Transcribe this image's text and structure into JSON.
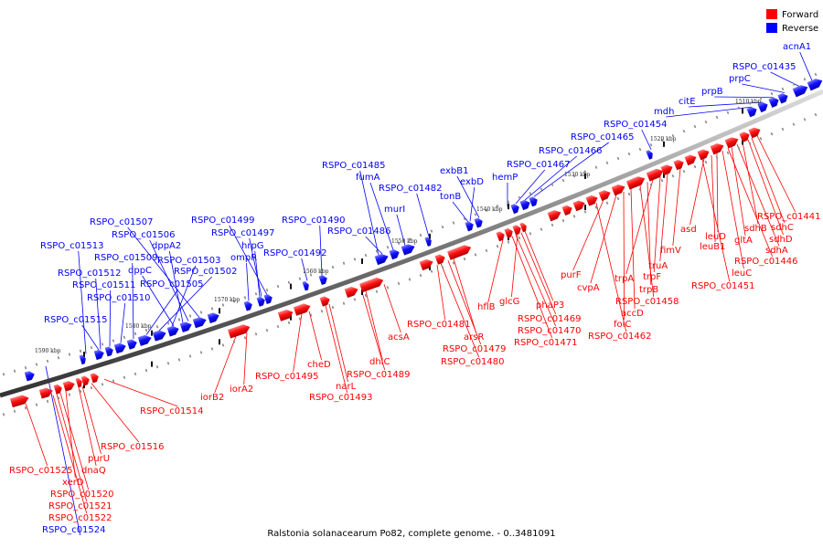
{
  "caption": "Ralstonia solanacearum Po82, complete genome. - 0..3481091",
  "legend": {
    "items": [
      {
        "label": "Forward",
        "color": "#ff0000"
      },
      {
        "label": "Reverse",
        "color": "#0000ff"
      }
    ]
  },
  "colors": {
    "forward": "#ff0000",
    "reverse": "#0000ff",
    "axis": "#808080",
    "line_forward": "#ff0000",
    "line_reverse": "#0000ff"
  },
  "ticks": [
    "1590 kbp",
    "1580 kbp",
    "1570 kbp",
    "1560 kbp",
    "1550 kbp",
    "1540 kbp",
    "1530 kbp",
    "1520 kbp",
    "1510 kbp"
  ],
  "forward_labels": [
    "RSPO_c01441",
    "sdhC",
    "sdhD",
    "sdhB",
    "sdhA",
    "gltA",
    "RSPO_c01446",
    "leuC",
    "leuD",
    "leuB1",
    "asd",
    "RSPO_c01451",
    "fimV",
    "truA",
    "trpF",
    "trpA",
    "trpB",
    "RSPO_c01458",
    "accD",
    "cvpA",
    "folC",
    "purF",
    "RSPO_c01462",
    "phaP3",
    "RSPO_c01469",
    "glcG",
    "RSPO_c01470",
    "RSPO_c01471",
    "hflB",
    "arsR",
    "RSPO_c01479",
    "RSPO_c01480",
    "RSPO_c01481",
    "acsA",
    "dhlC",
    "RSPO_c01489",
    "narL",
    "RSPO_c01493",
    "cheD",
    "RSPO_c01495",
    "iorA2",
    "iorB2",
    "RSPO_c01514",
    "RSPO_c01516",
    "purU",
    "dnaQ",
    "xerD",
    "RSPO_c01520",
    "RSPO_c01521",
    "RSPO_c01522",
    "RSPO_c01525"
  ],
  "reverse_labels": [
    "acnA1",
    "RSPO_c01435",
    "prpC",
    "prpB",
    "citE",
    "mdh",
    "RSPO_c01454",
    "RSPO_c01465",
    "RSPO_c01466",
    "RSPO_c01467",
    "hemP",
    "exbB1",
    "exbD",
    "tonB",
    "RSPO_c01482",
    "RSPO_c01485",
    "fumA",
    "murI",
    "RSPO_c01486",
    "RSPO_c01490",
    "RSPO_c01492",
    "RSPO_c01499",
    "RSPO_c01497",
    "hrpG",
    "ompR",
    "RSPO_c01507",
    "RSPO_c01506",
    "dppA2",
    "dppC",
    "RSPO_c01503",
    "RSPO_c01502",
    "RSPO_c01505",
    "RSPO_c01513",
    "RSPO_c01512",
    "RSPO_c01511",
    "RSPO_c01509",
    "RSPO_c01510",
    "RSPO_c01515",
    "RSPO_c01524"
  ]
}
